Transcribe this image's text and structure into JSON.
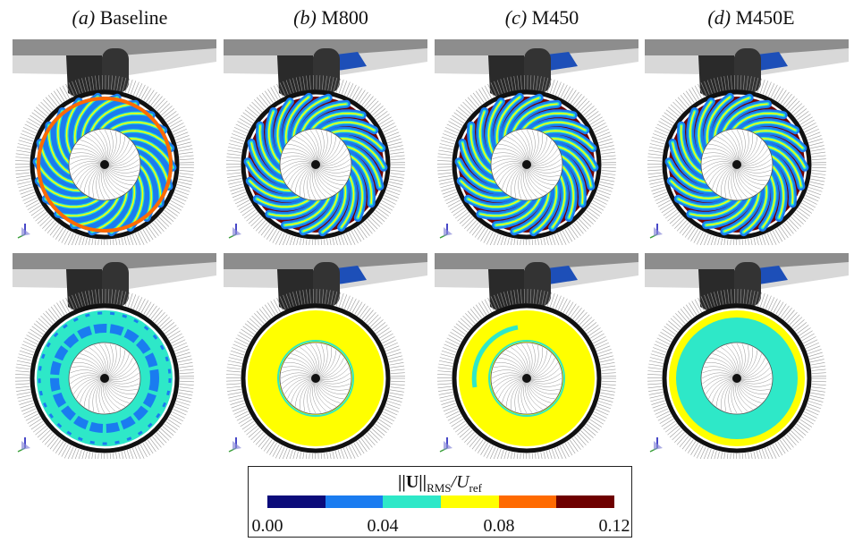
{
  "columns": [
    {
      "tag": "(a)",
      "name": "Baseline"
    },
    {
      "tag": "(b)",
      "name": "M800"
    },
    {
      "tag": "(c)",
      "name": "M450"
    },
    {
      "tag": "(d)",
      "name": "M450E"
    }
  ],
  "legend": {
    "title_main": "||U||",
    "title_sub1": "RMS",
    "title_mid": "/U",
    "title_sub2": "ref",
    "ticks": [
      "0.00",
      "0.04",
      "0.08",
      "0.12"
    ],
    "colors": [
      "#0b0b7a",
      "#1a7cf0",
      "#2ee8c8",
      "#ffff00",
      "#ff6a00",
      "#6e0000"
    ]
  },
  "colors": {
    "blade_blue": "#1d4fb8",
    "nacelle_gray": "#9a9a9a",
    "rim_black": "#111111"
  }
}
